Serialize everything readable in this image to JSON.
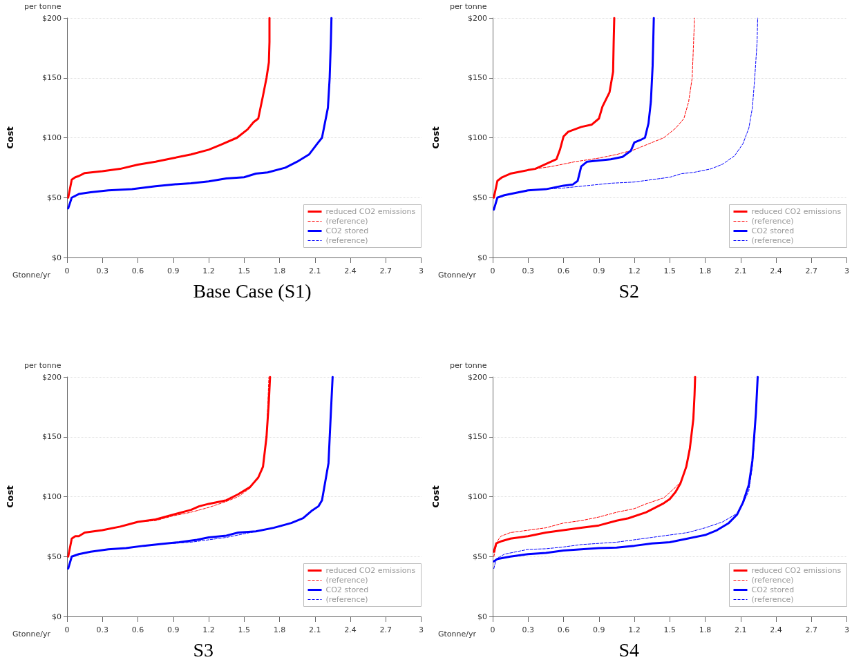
{
  "chart_data": [
    {
      "type": "line",
      "title": "Base Case (S1)",
      "xlabel": "Gtonne/yr",
      "ylabel": "Cost",
      "annotations": [
        "per tonne"
      ],
      "xlim": [
        0,
        3
      ],
      "xticks": [
        0,
        0.3,
        0.6,
        0.9,
        1.2,
        1.5,
        1.8,
        2.1,
        2.4,
        2.7,
        3
      ],
      "ylim": [
        0,
        200
      ],
      "yticks": [
        {
          "value": 0,
          "label": "$0"
        },
        {
          "value": 50,
          "label": "$50"
        },
        {
          "value": 100,
          "label": "$100"
        },
        {
          "value": 150,
          "label": "$150"
        },
        {
          "value": 200,
          "label": "$200"
        }
      ],
      "grid": "y",
      "legend": "bottom right",
      "marker": "none",
      "series": [
        {
          "name": "reduced CO2 emissions",
          "color": "#ff0000",
          "line_style": "solid",
          "x": [
            0.01,
            0.04,
            0.07,
            0.1,
            0.15,
            0.3,
            0.45,
            0.6,
            0.75,
            0.9,
            1.05,
            1.2,
            1.3,
            1.44,
            1.53,
            1.58,
            1.62,
            1.66,
            1.69,
            1.71,
            1.715,
            1.715
          ],
          "values": [
            50,
            65,
            67,
            68,
            70.5,
            72,
            74,
            77.5,
            80,
            83,
            86,
            90,
            94,
            100,
            107,
            113,
            116,
            135,
            150,
            163,
            180,
            200
          ]
        },
        {
          "name": "(reference)",
          "color": "#ff0000",
          "line_style": "dashed"
        },
        {
          "name": "CO2 stored",
          "color": "#0000ff",
          "line_style": "solid",
          "x": [
            0.01,
            0.04,
            0.1,
            0.2,
            0.35,
            0.55,
            0.75,
            0.9,
            1.05,
            1.2,
            1.35,
            1.5,
            1.6,
            1.7,
            1.85,
            1.95,
            2.05,
            2.12,
            2.16,
            2.21,
            2.225,
            2.235,
            2.24
          ],
          "values": [
            41,
            50,
            53,
            54.5,
            56,
            57,
            59.5,
            61,
            62,
            63.5,
            66,
            67,
            70,
            71,
            75,
            80,
            86,
            95,
            100,
            125,
            150,
            180,
            200
          ]
        },
        {
          "name": "(reference)",
          "color": "#0000ff",
          "line_style": "dashed"
        }
      ]
    },
    {
      "type": "line",
      "title": "S2",
      "xlabel": "Gtonne/yr",
      "ylabel": "Cost",
      "annotations": [
        "per tonne"
      ],
      "xlim": [
        0,
        3
      ],
      "xticks": [
        0,
        0.3,
        0.6,
        0.9,
        1.2,
        1.5,
        1.8,
        2.1,
        2.4,
        2.7,
        3
      ],
      "ylim": [
        0,
        200
      ],
      "yticks": [
        {
          "value": 0,
          "label": "$0"
        },
        {
          "value": 50,
          "label": "$50"
        },
        {
          "value": 100,
          "label": "$100"
        },
        {
          "value": 150,
          "label": "$150"
        },
        {
          "value": 200,
          "label": "$200"
        }
      ],
      "grid": "y",
      "legend": "bottom right",
      "marker": "none",
      "series": [
        {
          "name": "reduced CO2 emissions",
          "color": "#ff0000",
          "line_style": "solid",
          "x": [
            0.01,
            0.04,
            0.08,
            0.15,
            0.3,
            0.36,
            0.45,
            0.54,
            0.57,
            0.6,
            0.64,
            0.75,
            0.84,
            0.9,
            0.93,
            0.99,
            1.02,
            1.025,
            1.03
          ],
          "values": [
            50,
            64,
            67,
            70,
            73,
            74,
            78,
            82,
            90,
            101,
            105,
            109,
            111,
            116,
            126,
            138,
            155,
            180,
            200
          ]
        },
        {
          "name": "(reference)",
          "color": "#ff0000",
          "line_style": "dashed",
          "x": [
            0.36,
            0.5,
            0.7,
            0.9,
            1.05,
            1.2,
            1.3,
            1.45,
            1.55,
            1.62,
            1.66,
            1.69,
            1.7,
            1.71
          ],
          "values": [
            74,
            76,
            80,
            83,
            86,
            90,
            94,
            100,
            108,
            116,
            130,
            150,
            175,
            200
          ]
        },
        {
          "name": "CO2 stored",
          "color": "#0000ff",
          "line_style": "solid",
          "x": [
            0.01,
            0.04,
            0.1,
            0.2,
            0.3,
            0.45,
            0.6,
            0.68,
            0.72,
            0.75,
            0.8,
            0.9,
            1.0,
            1.1,
            1.17,
            1.2,
            1.25,
            1.29,
            1.32,
            1.34,
            1.355,
            1.365
          ],
          "values": [
            40,
            50,
            52,
            54,
            56,
            57,
            60,
            61,
            64,
            76,
            80,
            81,
            82,
            84,
            89,
            96,
            98,
            100,
            112,
            130,
            160,
            200
          ]
        },
        {
          "name": "(reference)",
          "color": "#0000ff",
          "line_style": "dashed",
          "x": [
            0.45,
            0.6,
            0.8,
            1.0,
            1.2,
            1.35,
            1.5,
            1.6,
            1.7,
            1.85,
            1.95,
            2.05,
            2.12,
            2.17,
            2.2,
            2.22,
            2.24,
            2.245
          ],
          "values": [
            57,
            58,
            60,
            62,
            63,
            65,
            67,
            70,
            71,
            74,
            78,
            85,
            95,
            108,
            125,
            150,
            180,
            200
          ]
        }
      ]
    },
    {
      "type": "line",
      "title": "S3",
      "xlabel": "Gtonne/yr",
      "ylabel": "Cost",
      "annotations": [
        "per tonne"
      ],
      "xlim": [
        0,
        3
      ],
      "xticks": [
        0,
        0.3,
        0.6,
        0.9,
        1.2,
        1.5,
        1.8,
        2.1,
        2.4,
        2.7,
        3
      ],
      "ylim": [
        0,
        200
      ],
      "yticks": [
        {
          "value": 0,
          "label": "$0"
        },
        {
          "value": 50,
          "label": "$50"
        },
        {
          "value": 100,
          "label": "$100"
        },
        {
          "value": 150,
          "label": "$150"
        },
        {
          "value": 200,
          "label": "$200"
        }
      ],
      "grid": "y",
      "legend": "bottom right",
      "marker": "none",
      "series": [
        {
          "name": "reduced CO2 emissions",
          "color": "#ff0000",
          "line_style": "solid",
          "x": [
            0.01,
            0.04,
            0.07,
            0.1,
            0.15,
            0.3,
            0.45,
            0.6,
            0.75,
            0.9,
            1.05,
            1.12,
            1.2,
            1.35,
            1.45,
            1.55,
            1.62,
            1.66,
            1.69,
            1.71,
            1.72
          ],
          "values": [
            50,
            65,
            67,
            67,
            70,
            72,
            75,
            79,
            81,
            85,
            89,
            92,
            94,
            97,
            102,
            108,
            116,
            125,
            150,
            180,
            200
          ]
        },
        {
          "name": "(reference)",
          "color": "#ff0000",
          "line_style": "dashed",
          "x": [
            0.6,
            0.75,
            0.9,
            1.05,
            1.2,
            1.35,
            1.45,
            1.55,
            1.62,
            1.66,
            1.69,
            1.71
          ],
          "values": [
            79,
            80,
            84,
            87,
            91,
            96,
            100,
            107,
            116,
            125,
            150,
            200
          ]
        },
        {
          "name": "CO2 stored",
          "color": "#0000ff",
          "line_style": "solid",
          "x": [
            0.01,
            0.04,
            0.1,
            0.2,
            0.35,
            0.5,
            0.65,
            0.8,
            0.95,
            1.1,
            1.2,
            1.35,
            1.45,
            1.6,
            1.75,
            1.9,
            2.0,
            2.07,
            2.13,
            2.16,
            2.215,
            2.235,
            2.25
          ],
          "values": [
            40,
            50,
            52,
            54,
            56,
            57,
            59,
            60.5,
            62,
            64,
            66,
            67.5,
            70,
            71,
            74,
            78,
            82,
            88,
            92,
            97,
            128,
            170,
            200
          ]
        },
        {
          "name": "(reference)",
          "color": "#0000ff",
          "line_style": "dashed",
          "x": [
            0.9,
            1.05,
            1.2,
            1.35,
            1.5,
            1.65,
            1.8,
            1.95
          ],
          "values": [
            61,
            62,
            64,
            66,
            69,
            72,
            75,
            80
          ]
        }
      ]
    },
    {
      "type": "line",
      "title": "S4",
      "xlabel": "Gtonne/yr",
      "ylabel": "Cost",
      "annotations": [
        "per tonne"
      ],
      "xlim": [
        0,
        3
      ],
      "xticks": [
        0,
        0.3,
        0.6,
        0.9,
        1.2,
        1.5,
        1.8,
        2.1,
        2.4,
        2.7,
        3
      ],
      "ylim": [
        0,
        200
      ],
      "yticks": [
        {
          "value": 0,
          "label": "$0"
        },
        {
          "value": 50,
          "label": "$50"
        },
        {
          "value": 100,
          "label": "$100"
        },
        {
          "value": 150,
          "label": "$150"
        },
        {
          "value": 200,
          "label": "$200"
        }
      ],
      "grid": "y",
      "legend": "bottom right",
      "marker": "none",
      "series": [
        {
          "name": "reduced CO2 emissions",
          "color": "#ff0000",
          "line_style": "solid",
          "x": [
            0.01,
            0.03,
            0.08,
            0.15,
            0.3,
            0.45,
            0.6,
            0.75,
            0.9,
            1.05,
            1.15,
            1.3,
            1.44,
            1.5,
            1.55,
            1.59,
            1.64,
            1.67,
            1.7,
            1.71,
            1.715
          ],
          "values": [
            54,
            61,
            63,
            65,
            67,
            70,
            72,
            74,
            76,
            80,
            82,
            87,
            94,
            98,
            104,
            111,
            125,
            140,
            165,
            185,
            200
          ]
        },
        {
          "name": "(reference)",
          "color": "#ff0000",
          "line_style": "dashed",
          "x": [
            0.01,
            0.04,
            0.07,
            0.15,
            0.3,
            0.45,
            0.6,
            0.75,
            0.9,
            1.05,
            1.2,
            1.3,
            1.45,
            1.55,
            1.6,
            1.65,
            1.69,
            1.71,
            1.715
          ],
          "values": [
            50,
            63,
            67,
            70,
            72,
            74,
            78,
            80,
            83,
            87,
            90,
            94,
            99,
            108,
            113,
            130,
            155,
            185,
            200
          ]
        },
        {
          "name": "CO2 stored",
          "color": "#0000ff",
          "line_style": "solid",
          "x": [
            0.01,
            0.04,
            0.15,
            0.3,
            0.45,
            0.6,
            0.75,
            0.9,
            1.05,
            1.2,
            1.35,
            1.5,
            1.65,
            1.8,
            1.9,
            2.0,
            2.07,
            2.12,
            2.17,
            2.2,
            2.23,
            2.245
          ],
          "values": [
            46,
            48,
            50,
            52,
            53,
            55,
            56,
            57,
            57.5,
            59,
            61,
            62,
            65,
            68,
            72,
            78,
            85,
            95,
            110,
            130,
            170,
            200
          ]
        },
        {
          "name": "(reference)",
          "color": "#0000ff",
          "line_style": "dashed",
          "x": [
            0.01,
            0.03,
            0.1,
            0.3,
            0.45,
            0.6,
            0.75,
            0.9,
            1.05,
            1.2,
            1.35,
            1.5,
            1.65,
            1.8,
            1.95,
            2.07,
            2.12,
            2.17,
            2.2,
            2.22,
            2.24,
            2.245
          ],
          "values": [
            40,
            48,
            52,
            56,
            56.5,
            58,
            60,
            61,
            62,
            64,
            66,
            68,
            70,
            74,
            79,
            86,
            94,
            105,
            125,
            150,
            190,
            200
          ]
        }
      ]
    }
  ]
}
